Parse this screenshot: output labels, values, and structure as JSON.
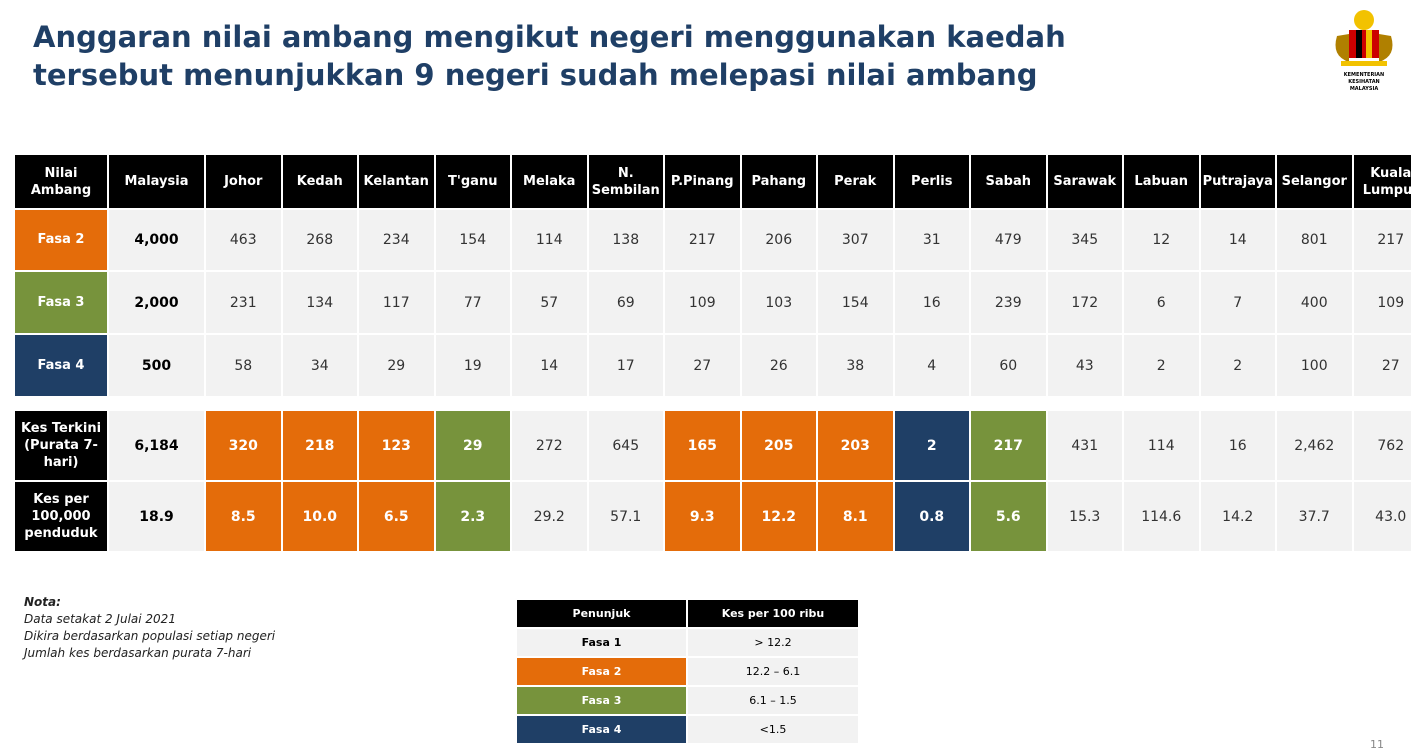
{
  "header": {
    "title": "Anggaran nilai ambang mengikut negeri menggunakan kaedah tersebut menunjukkan 9 negeri sudah melepasi nilai ambang",
    "logo_text": "KEMENTERIAN KESIHATAN MALAYSIA"
  },
  "table": {
    "columns": [
      "Nilai Ambang",
      "Malaysia",
      "Johor",
      "Kedah",
      "Kelantan",
      "T'ganu",
      "Melaka",
      "N. Sembilan",
      "P.Pinang",
      "Pahang",
      "Perak",
      "Perlis",
      "Sabah",
      "Sarawak",
      "Labuan",
      "Putrajaya",
      "Selangor",
      "Kuala Lumpur"
    ],
    "threshold_rows": [
      {
        "label": "Fasa 2",
        "color": "#e46c0a",
        "values": [
          "4,000",
          "463",
          "268",
          "234",
          "154",
          "114",
          "138",
          "217",
          "206",
          "307",
          "31",
          "479",
          "345",
          "12",
          "14",
          "801",
          "217"
        ]
      },
      {
        "label": "Fasa 3",
        "color": "#77933c",
        "values": [
          "2,000",
          "231",
          "134",
          "117",
          "77",
          "57",
          "69",
          "109",
          "103",
          "154",
          "16",
          "239",
          "172",
          "6",
          "7",
          "400",
          "109"
        ]
      },
      {
        "label": "Fasa 4",
        "color": "#1f3f66",
        "values": [
          "500",
          "58",
          "34",
          "29",
          "19",
          "14",
          "17",
          "27",
          "26",
          "38",
          "4",
          "60",
          "43",
          "2",
          "2",
          "100",
          "27"
        ]
      }
    ],
    "case_rows": [
      {
        "label": "Kes Terkini (Purata 7-hari)",
        "values": [
          "6,184",
          "320",
          "218",
          "123",
          "29",
          "272",
          "645",
          "165",
          "205",
          "203",
          "2",
          "217",
          "431",
          "114",
          "16",
          "2,462",
          "762"
        ]
      },
      {
        "label": "Kes per 100,000 penduduk",
        "values": [
          "18.9",
          "8.5",
          "10.0",
          "6.5",
          "2.3",
          "29.2",
          "57.1",
          "9.3",
          "12.2",
          "8.1",
          "0.8",
          "5.6",
          "15.3",
          "114.6",
          "14.2",
          "37.7",
          "43.0"
        ]
      }
    ],
    "case_colors": [
      null,
      "#e46c0a",
      "#e46c0a",
      "#e46c0a",
      "#77933c",
      null,
      null,
      "#e46c0a",
      "#e46c0a",
      "#e46c0a",
      "#1f3f66",
      "#77933c",
      null,
      null,
      null,
      null,
      null
    ]
  },
  "notes": {
    "title": "Nota:",
    "lines": [
      "Data setakat 2 Julai 2021",
      "Dikira berdasarkan populasi setiap negeri",
      "Jumlah kes berdasarkan purata 7-hari"
    ]
  },
  "legend": {
    "columns": [
      "Penunjuk",
      "Kes per 100 ribu"
    ],
    "rows": [
      {
        "label": "Fasa 1",
        "range": "> 12.2",
        "color": "#f2f2f2"
      },
      {
        "label": "Fasa 2",
        "range": "12.2 – 6.1",
        "color": "#e46c0a"
      },
      {
        "label": "Fasa 3",
        "range": "6.1 – 1.5",
        "color": "#77933c"
      },
      {
        "label": "Fasa 4",
        "range": "<1.5",
        "color": "#1f3f66"
      }
    ]
  },
  "page_number": "11"
}
